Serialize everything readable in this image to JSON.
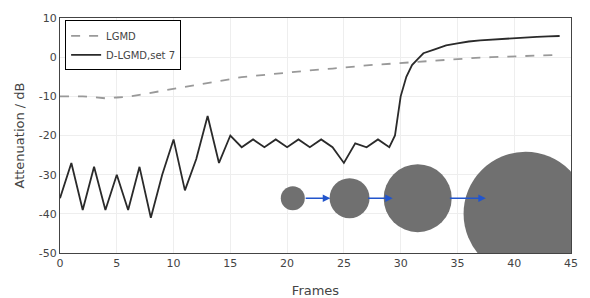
{
  "chart_data": {
    "type": "line",
    "title": "",
    "xlabel": "Frames",
    "ylabel": "Attenuation / dB",
    "xlim": [
      0,
      45
    ],
    "ylim": [
      -50,
      10
    ],
    "xticks": [
      0,
      5,
      10,
      15,
      20,
      25,
      30,
      35,
      40,
      45
    ],
    "yticks": [
      -50,
      -40,
      -30,
      -20,
      -10,
      0,
      10
    ],
    "grid": true,
    "legend": "upper left",
    "background_color": "#ffffff",
    "series": [
      {
        "name": "LGMD",
        "color": "#999999",
        "line_style": "dashed",
        "x": [
          0,
          1,
          2,
          3,
          4,
          5,
          6,
          7,
          8,
          9,
          10,
          11,
          12,
          13,
          14,
          15,
          16,
          17,
          18,
          19,
          20,
          21,
          22,
          23,
          24,
          25,
          26,
          27,
          28,
          29,
          30,
          31,
          32,
          33,
          34,
          35,
          36,
          37,
          38,
          39,
          40,
          41,
          42,
          43,
          44
        ],
        "values": [
          -10,
          -10,
          -10,
          -10.2,
          -10.5,
          -10.3,
          -10.1,
          -9.6,
          -9.1,
          -8.6,
          -8.1,
          -7.6,
          -7.1,
          -6.6,
          -6.1,
          -5.6,
          -5.1,
          -4.8,
          -4.5,
          -4.2,
          -3.9,
          -3.7,
          -3.4,
          -3.1,
          -2.9,
          -2.7,
          -2.4,
          -2.1,
          -1.9,
          -1.7,
          -1.4,
          -1.2,
          -1.0,
          -0.8,
          -0.6,
          -0.4,
          -0.2,
          -0.1,
          0.0,
          0.1,
          0.2,
          0.3,
          0.4,
          0.5,
          0.6
        ]
      },
      {
        "name": "D-LGMD,set 7",
        "color": "#2a2a2a",
        "line_style": "solid",
        "x": [
          0,
          1,
          2,
          3,
          4,
          5,
          6,
          7,
          8,
          9,
          10,
          11,
          12,
          13,
          14,
          15,
          16,
          17,
          18,
          19,
          20,
          21,
          22,
          23,
          24,
          25,
          26,
          27,
          28,
          29,
          29.5,
          30,
          30.5,
          31,
          31.5,
          32,
          33,
          34,
          35,
          36,
          37,
          38,
          39,
          40,
          41,
          42,
          43,
          44
        ],
        "values": [
          -36,
          -27,
          -39,
          -28,
          -39,
          -30,
          -39,
          -28,
          -41,
          -30,
          -21,
          -34,
          -26,
          -15,
          -27,
          -20,
          -23,
          -21,
          -23,
          -21,
          -23,
          -21,
          -23,
          -21,
          -23,
          -27,
          -22,
          -23,
          -21,
          -23,
          -20,
          -10,
          -5,
          -2,
          -0.5,
          1,
          2,
          3,
          3.5,
          4,
          4.3,
          4.5,
          4.7,
          4.8,
          5.0,
          5.2,
          5.3,
          5.4
        ]
      }
    ],
    "circles": {
      "color": "#707070",
      "x": [
        20.5,
        25.5,
        31.5,
        41.0
      ],
      "y": [
        -36,
        -36,
        -36,
        -40
      ],
      "size": [
        12,
        20,
        34,
        62
      ]
    },
    "arrows": {
      "color": "#2255CC",
      "items": [
        {
          "x1": 21.5,
          "x2": 23.8,
          "y": -36
        },
        {
          "x1": 27.0,
          "x2": 29.3,
          "y": -36
        },
        {
          "x1": 34.2,
          "x2": 37.5,
          "y": -36
        }
      ]
    }
  }
}
